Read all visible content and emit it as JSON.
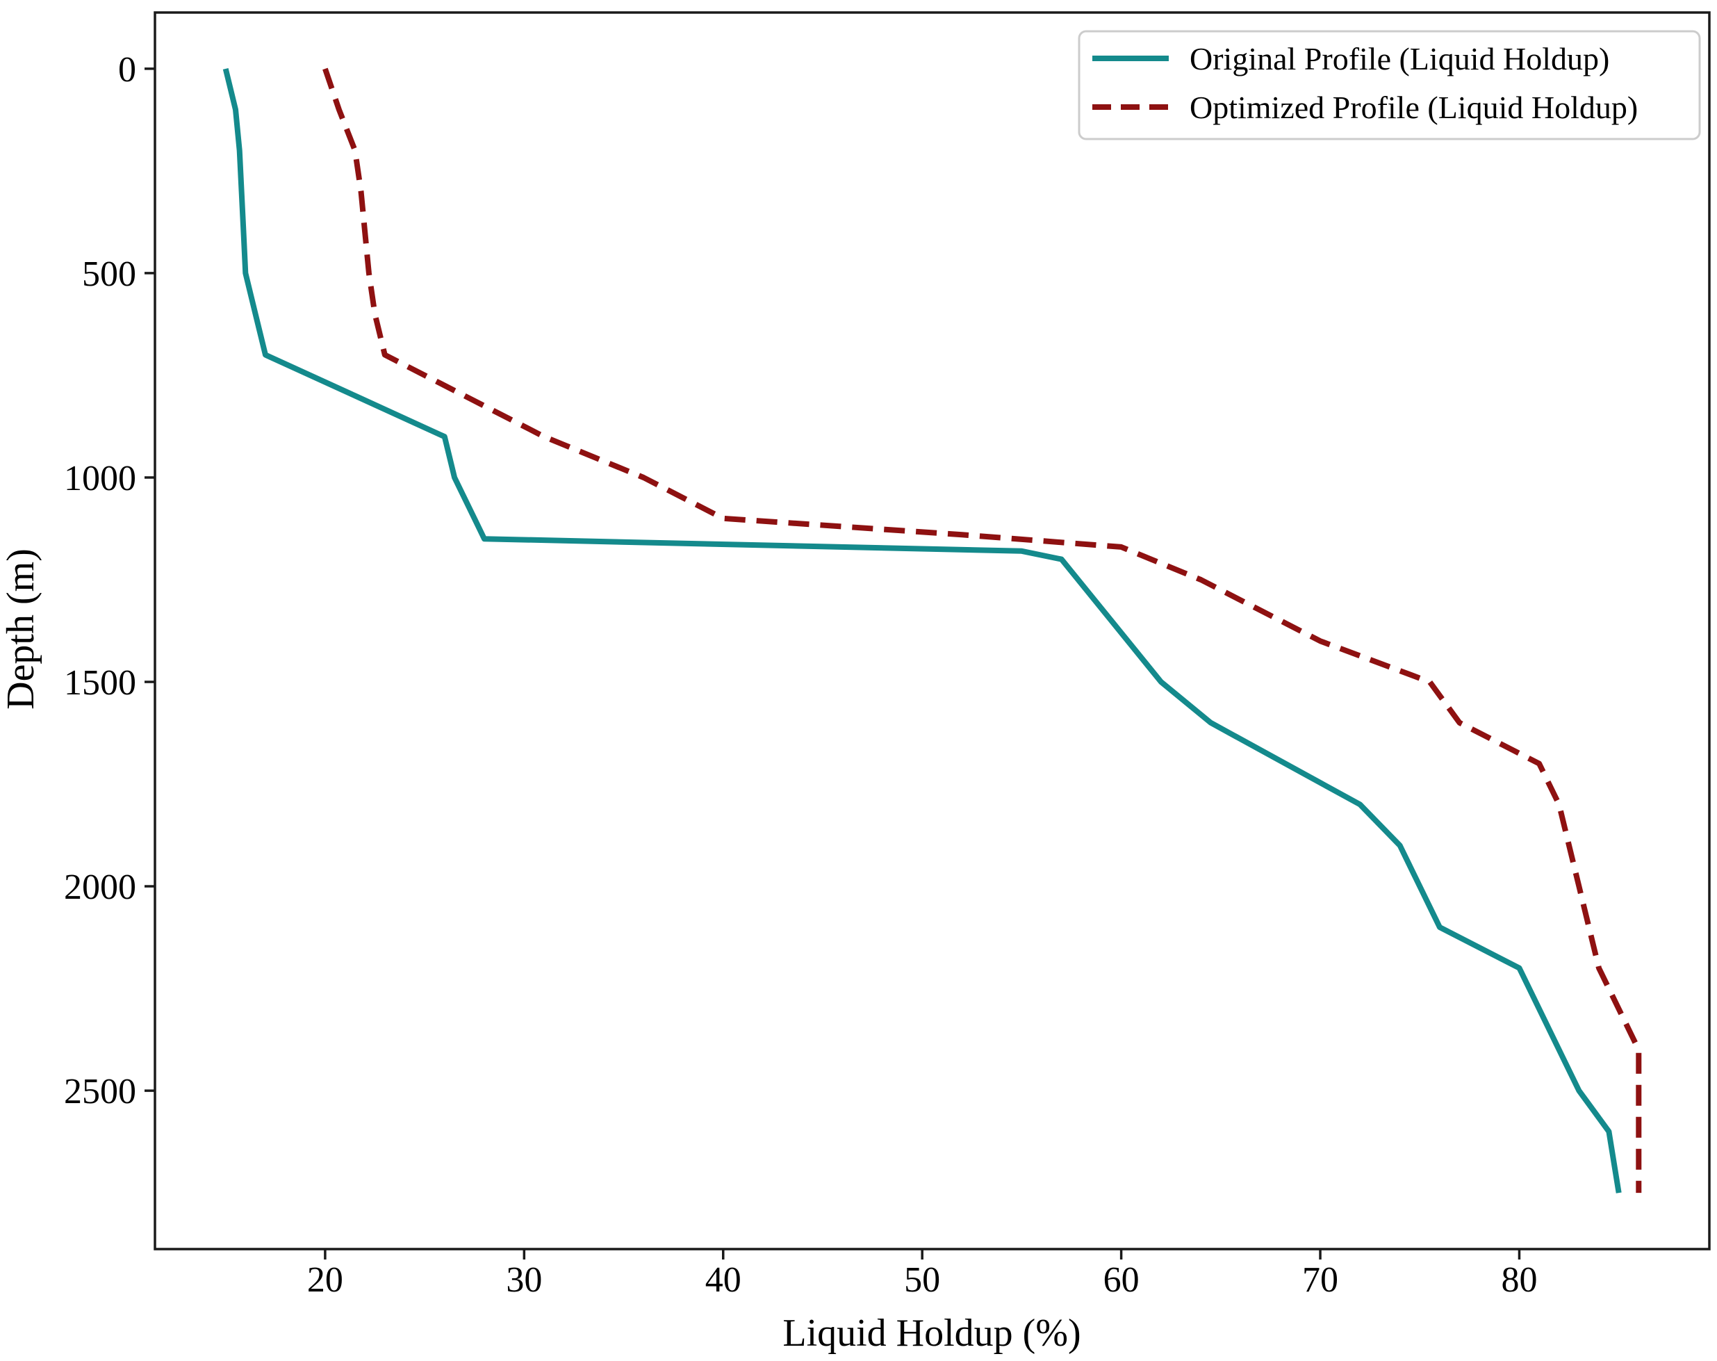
{
  "figure": {
    "background": "#ffffff",
    "axis_color": "#1a1a1a"
  },
  "chart_data": {
    "type": "line",
    "title": "",
    "xlabel": "Liquid Holdup (%)",
    "ylabel": "Depth (m)",
    "x_ticks": [
      20,
      30,
      40,
      50,
      60,
      70,
      80
    ],
    "y_ticks": [
      0,
      500,
      1000,
      1500,
      2000,
      2500
    ],
    "x_range_data": [
      15,
      86
    ],
    "depth_range_data": [
      0,
      2750
    ],
    "y_axis_inverted": true,
    "grid": false,
    "legend": {
      "position": "upper right",
      "border_color": "#cccccc",
      "background": "#ffffff"
    },
    "series": [
      {
        "name": "Original Profile (Liquid Holdup)",
        "color": "#148a8c",
        "line_style": "solid",
        "points_format": "[liquid_holdup_pct, depth_m]",
        "points": [
          [
            15.0,
            0
          ],
          [
            15.5,
            100
          ],
          [
            15.7,
            200
          ],
          [
            15.8,
            300
          ],
          [
            15.9,
            400
          ],
          [
            16.0,
            500
          ],
          [
            16.5,
            600
          ],
          [
            17.0,
            700
          ],
          [
            21.5,
            800
          ],
          [
            26.0,
            900
          ],
          [
            26.5,
            1000
          ],
          [
            27.0,
            1050
          ],
          [
            27.5,
            1100
          ],
          [
            28.0,
            1150
          ],
          [
            55.0,
            1180
          ],
          [
            57.0,
            1200
          ],
          [
            62.0,
            1500
          ],
          [
            64.5,
            1600
          ],
          [
            72.0,
            1800
          ],
          [
            74.0,
            1900
          ],
          [
            76.0,
            2100
          ],
          [
            80.0,
            2200
          ],
          [
            82.0,
            2400
          ],
          [
            83.0,
            2500
          ],
          [
            84.5,
            2600
          ],
          [
            85.0,
            2750
          ]
        ]
      },
      {
        "name": "Optimized Profile (Liquid Holdup)",
        "color": "#8e1111",
        "line_style": "dashed",
        "points_format": "[liquid_holdup_pct, depth_m]",
        "points": [
          [
            20.0,
            0
          ],
          [
            20.7,
            100
          ],
          [
            21.5,
            200
          ],
          [
            21.8,
            300
          ],
          [
            22.0,
            400
          ],
          [
            22.2,
            500
          ],
          [
            22.5,
            600
          ],
          [
            23.0,
            700
          ],
          [
            27.0,
            800
          ],
          [
            31.0,
            900
          ],
          [
            36.0,
            1000
          ],
          [
            38.0,
            1050
          ],
          [
            40.0,
            1100
          ],
          [
            46.0,
            1120
          ],
          [
            52.0,
            1140
          ],
          [
            60.0,
            1170
          ],
          [
            64.0,
            1250
          ],
          [
            68.0,
            1350
          ],
          [
            70.0,
            1400
          ],
          [
            75.5,
            1500
          ],
          [
            77.0,
            1600
          ],
          [
            81.0,
            1700
          ],
          [
            82.0,
            1800
          ],
          [
            83.0,
            2000
          ],
          [
            84.0,
            2200
          ],
          [
            86.0,
            2400
          ],
          [
            86.0,
            2750
          ]
        ]
      }
    ]
  }
}
